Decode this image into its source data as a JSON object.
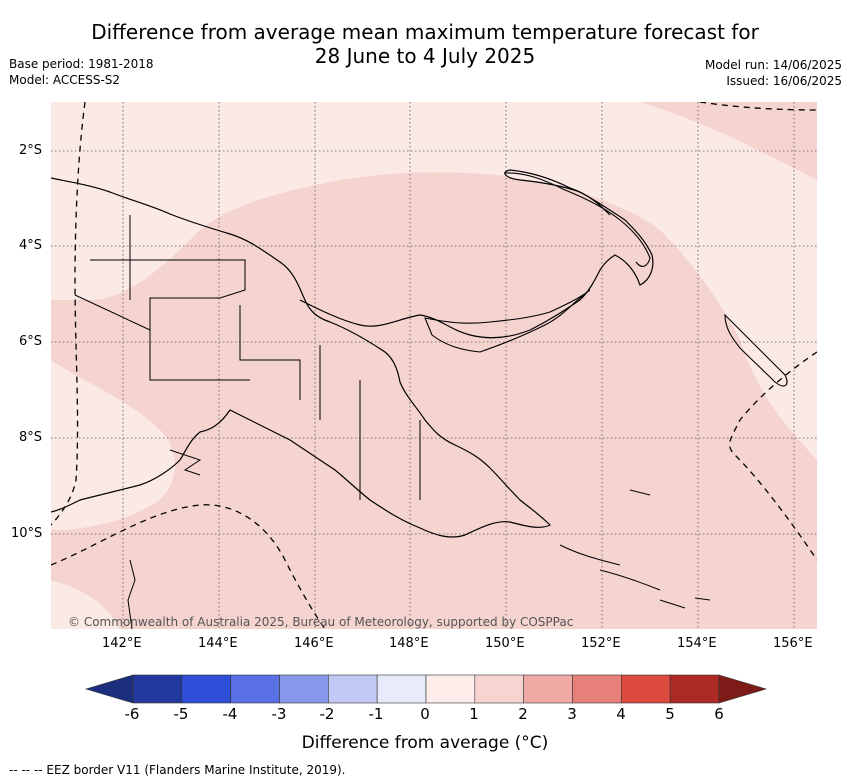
{
  "title": {
    "line1": "Difference from average mean maximum temperature forecast for",
    "line2": "28 June to 4 July 2025"
  },
  "meta": {
    "base_period": "Base period: 1981-2018",
    "model": "Model: ACCESS-S2",
    "model_run": "Model run: 14/06/2025",
    "issued": "Issued: 16/06/2025"
  },
  "map": {
    "copyright": "© Commonwealth of Australia 2025, Bureau of Meteorology, supported by COSPPac",
    "lat_labels": [
      "2°S",
      "4°S",
      "6°S",
      "8°S",
      "10°S"
    ],
    "lon_labels": [
      "142°E",
      "144°E",
      "146°E",
      "148°E",
      "150°E",
      "152°E",
      "154°E",
      "156°E"
    ],
    "colors": {
      "anomaly_0_1": "#fbe9e6",
      "anomaly_1_2": "#f5d4d0",
      "land_outline": "#000000",
      "eez_line": "#000000"
    }
  },
  "colorbar": {
    "title": "Difference from average (°C)",
    "tick_labels": [
      "-6",
      "-5",
      "-4",
      "-3",
      "-2",
      "-1",
      "0",
      "1",
      "2",
      "3",
      "4",
      "5",
      "6"
    ],
    "colors": [
      "#23389e",
      "#2f4fd8",
      "#5970e4",
      "#8797ea",
      "#c2c9f5",
      "#e8ecfa",
      "#fdecea",
      "#f7d4d0",
      "#f0aaa5",
      "#e8807a",
      "#dc4a3e",
      "#ad2a24"
    ],
    "under_color": "#1b2f7e",
    "over_color": "#7c1b17"
  },
  "legend": {
    "eez_note": "-- -- -- EEZ border V11 (Flanders Marine Institute, 2019)."
  }
}
